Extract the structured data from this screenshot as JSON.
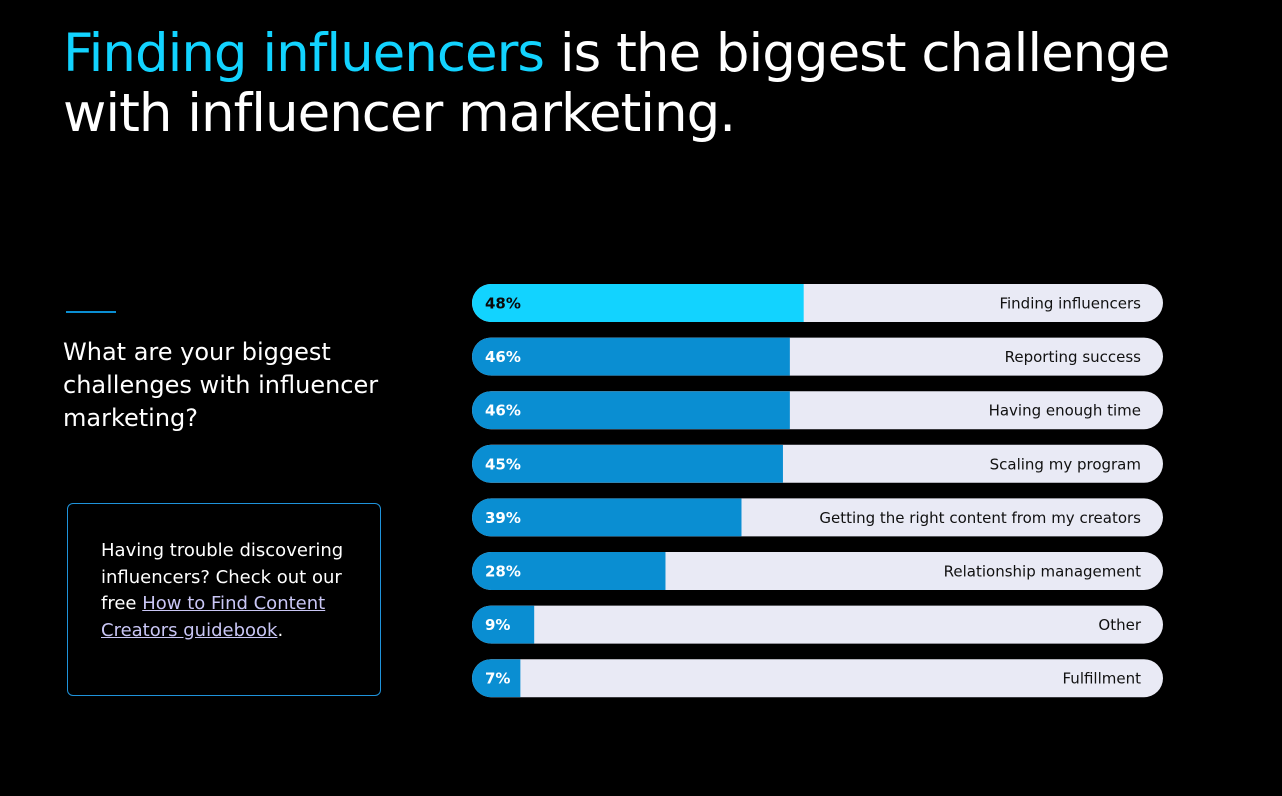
{
  "chart_data": {
    "type": "bar",
    "orientation": "horizontal",
    "title_highlight": "Finding influencers",
    "title": "is the biggest challenge with influencer marketing.",
    "question": "What are your biggest challenges with influencer marketing?",
    "callout": {
      "text": "Having trouble discovering influencers? Check out our free",
      "link": "How to Find Content Creators guidebook",
      "end": "."
    },
    "categories": [
      "Finding influencers",
      "Reporting success",
      "Having enough time",
      "Scaling my program",
      "Getting the right content from my creators",
      "Relationship management",
      "Other",
      "Fulfillment"
    ],
    "values": [
      48,
      46,
      46,
      45,
      39,
      28,
      9,
      7
    ],
    "value_labels": [
      "48%",
      "46%",
      "46%",
      "45%",
      "39%",
      "28%",
      "9%",
      "7%"
    ],
    "colors": [
      "#12d3ff",
      "#0a8ed2",
      "#0a8ed2",
      "#0a8ed2",
      "#0a8ed2",
      "#0a8ed2",
      "#0a8ed2",
      "#0a8ed2"
    ],
    "track_color": "#e9eaf5",
    "xlim": [
      0,
      100
    ]
  }
}
